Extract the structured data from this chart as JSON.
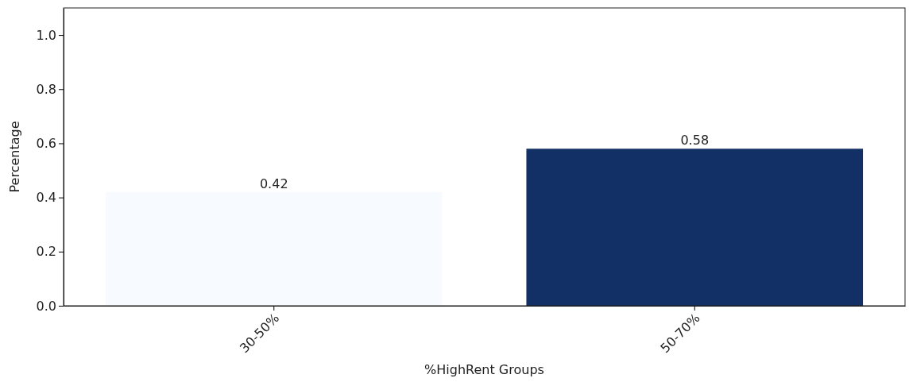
{
  "chart_data": {
    "type": "bar",
    "xlabel": "%HighRent Groups",
    "ylabel": "Percentage",
    "categories": [
      "30-50%",
      "50-70%"
    ],
    "values": [
      0.42,
      0.58
    ],
    "colors": [
      "#f7fbff",
      "#133066"
    ],
    "ylim": [
      0,
      1.1
    ],
    "yticks": [
      {
        "value": 0,
        "label": "0.0"
      },
      {
        "value": 0.2,
        "label": "0.2"
      },
      {
        "value": 0.4,
        "label": "0.4"
      },
      {
        "value": 0.6,
        "label": "0.6"
      },
      {
        "value": 0.8,
        "label": "0.8"
      },
      {
        "value": 1,
        "label": "1.0"
      }
    ],
    "data_labels": true
  }
}
